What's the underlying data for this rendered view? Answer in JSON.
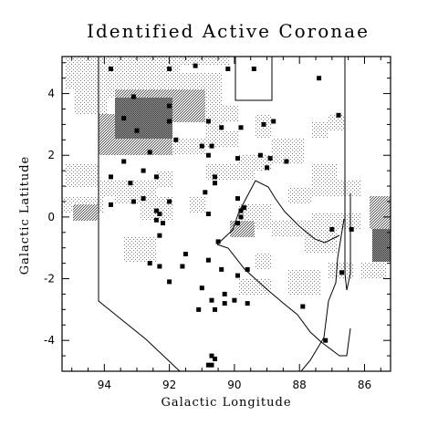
{
  "chart_data": {
    "type": "scatter",
    "title": "Identified Active Coronae",
    "xlabel": "Galactic Longitude",
    "ylabel": "Galactic Latitude",
    "xlim": [
      95.3,
      85.2
    ],
    "ylim": [
      -5.0,
      5.2
    ],
    "xticks": [
      94,
      92,
      90,
      88,
      86
    ],
    "yticks": [
      4,
      2,
      0,
      -2,
      -4
    ],
    "grid": false,
    "colors": {
      "points": "#000000",
      "dense": "#555555",
      "medium": "#909090",
      "light": "#c8c8c8"
    },
    "points": [
      [
        93.8,
        4.8
      ],
      [
        92.0,
        4.8
      ],
      [
        91.2,
        4.9
      ],
      [
        90.2,
        4.8
      ],
      [
        89.4,
        4.8
      ],
      [
        87.4,
        4.5
      ],
      [
        93.1,
        3.9
      ],
      [
        92.0,
        3.6
      ],
      [
        93.0,
        2.8
      ],
      [
        93.4,
        3.2
      ],
      [
        92.0,
        3.1
      ],
      [
        90.8,
        3.1
      ],
      [
        91.8,
        2.5
      ],
      [
        91.0,
        2.3
      ],
      [
        90.4,
        2.9
      ],
      [
        90.7,
        2.3
      ],
      [
        89.8,
        2.9
      ],
      [
        89.1,
        3.0
      ],
      [
        88.8,
        3.1
      ],
      [
        86.8,
        3.3
      ],
      [
        89.2,
        2.0
      ],
      [
        92.6,
        2.1
      ],
      [
        90.8,
        2.0
      ],
      [
        89.9,
        1.9
      ],
      [
        89.0,
        1.6
      ],
      [
        88.4,
        1.8
      ],
      [
        88.9,
        1.9
      ],
      [
        93.4,
        1.8
      ],
      [
        93.8,
        1.3
      ],
      [
        92.8,
        1.5
      ],
      [
        92.4,
        1.3
      ],
      [
        93.2,
        1.1
      ],
      [
        90.6,
        1.3
      ],
      [
        90.6,
        1.1
      ],
      [
        90.9,
        0.8
      ],
      [
        89.9,
        0.6
      ],
      [
        93.8,
        0.4
      ],
      [
        92.8,
        0.6
      ],
      [
        93.1,
        0.5
      ],
      [
        92.0,
        0.5
      ],
      [
        92.4,
        0.2
      ],
      [
        92.3,
        0.1
      ],
      [
        90.8,
        0.1
      ],
      [
        89.8,
        0.2
      ],
      [
        89.7,
        0.3
      ],
      [
        89.8,
        0.0
      ],
      [
        89.9,
        -0.2
      ],
      [
        90.5,
        -0.8
      ],
      [
        92.4,
        -0.1
      ],
      [
        92.2,
        -0.2
      ],
      [
        92.3,
        -0.6
      ],
      [
        87.0,
        -0.4
      ],
      [
        86.4,
        -0.4
      ],
      [
        91.5,
        -1.2
      ],
      [
        92.6,
        -1.5
      ],
      [
        92.3,
        -1.6
      ],
      [
        91.6,
        -1.6
      ],
      [
        90.8,
        -1.4
      ],
      [
        90.4,
        -1.7
      ],
      [
        89.6,
        -1.7
      ],
      [
        89.9,
        -1.9
      ],
      [
        86.7,
        -1.8
      ],
      [
        92.0,
        -2.1
      ],
      [
        91.0,
        -2.3
      ],
      [
        90.3,
        -2.5
      ],
      [
        90.7,
        -2.7
      ],
      [
        90.0,
        -2.7
      ],
      [
        90.3,
        -2.8
      ],
      [
        89.6,
        -2.8
      ],
      [
        87.9,
        -2.9
      ],
      [
        91.1,
        -3.0
      ],
      [
        90.6,
        -3.0
      ],
      [
        90.7,
        -4.5
      ],
      [
        90.6,
        -4.6
      ],
      [
        90.7,
        -4.8
      ],
      [
        90.8,
        -4.8
      ],
      [
        87.2,
        -4.0
      ]
    ]
  }
}
